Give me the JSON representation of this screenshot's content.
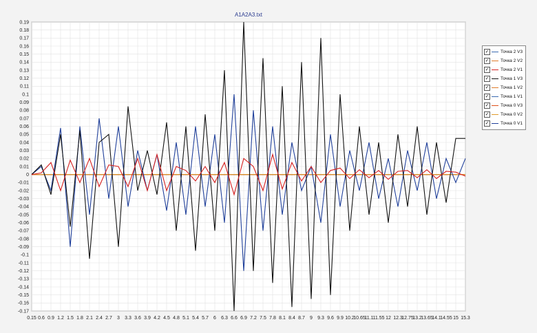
{
  "chart_data": {
    "type": "line",
    "title": "A1A2A3.txt",
    "xlabel": "",
    "ylabel": "",
    "xlim": [
      0.15,
      15.3
    ],
    "ylim": [
      -0.17,
      0.19
    ],
    "grid": true,
    "legend_position": "right",
    "x_ticks": [
      "0.15",
      "0.6",
      "0.9",
      "1.2",
      "1.5",
      "1.8",
      "2.1",
      "2.4",
      "2.7",
      "3",
      "3.3",
      "3.6",
      "3.9",
      "4.2",
      "4.5",
      "4.8",
      "5.1",
      "5.4",
      "5.7",
      "6",
      "6.3",
      "6.6",
      "6.9",
      "7.2",
      "7.5",
      "7.8",
      "8.1",
      "8.4",
      "8.7",
      "9",
      "9.3",
      "9.6",
      "9.9",
      "10.2",
      "10.65",
      "11.1",
      "11.55",
      "12",
      "12.3",
      "12.75",
      "13.2",
      "13.65",
      "14.1",
      "14.55",
      "15",
      "15.3"
    ],
    "y_ticks": [
      "0.19",
      "0.18",
      "0.17",
      "0.16",
      "0.15",
      "0.14",
      "0.13",
      "0.12",
      "0.11",
      "0.1",
      "0.09",
      "0.08",
      "0.07",
      "0.06",
      "0.05",
      "0.04",
      "0.03",
      "0.02",
      "0.01",
      "0",
      "-0.01",
      "-0.02",
      "-0.03",
      "-0.04",
      "-0.05",
      "-0.06",
      "-0.07",
      "-0.08",
      "-0.09",
      "-0.1",
      "-0.11",
      "-0.12",
      "-0.13",
      "-0.14",
      "-0.15",
      "-0.16",
      "-0.17"
    ],
    "series": [
      {
        "name": "Точка 2 V3",
        "color": "#3a6ab0",
        "values": [
          0,
          0,
          0,
          0,
          0,
          0,
          0,
          0,
          0,
          0,
          0,
          0,
          0,
          0,
          0,
          0,
          0,
          0,
          0,
          0,
          0,
          0,
          0,
          0,
          0,
          0,
          0,
          0,
          0,
          0,
          0,
          0,
          0,
          0,
          0,
          0,
          0,
          0,
          0,
          0,
          0,
          0,
          0,
          0,
          0,
          0
        ]
      },
      {
        "name": "Точка 2 V2",
        "color": "#e07b2a",
        "values": [
          0,
          0,
          0,
          0,
          0,
          0,
          0,
          0,
          0,
          0,
          0,
          0,
          0,
          0,
          0,
          0,
          0,
          0,
          0,
          0,
          0,
          0,
          0,
          0,
          0,
          0,
          0,
          0,
          0,
          0,
          0,
          0,
          0,
          0,
          0,
          0,
          0,
          0,
          0,
          0,
          0,
          0,
          0,
          0,
          0,
          0
        ]
      },
      {
        "name": "Точка 2 V1",
        "color": "#d62020",
        "values": [
          0,
          0.002,
          0.015,
          -0.02,
          0.018,
          -0.01,
          0.02,
          -0.015,
          0.012,
          0.01,
          -0.015,
          0.02,
          -0.02,
          0.025,
          -0.02,
          0.01,
          0.005,
          -0.008,
          0.01,
          -0.01,
          0.015,
          -0.025,
          0.02,
          0.01,
          -0.02,
          0.025,
          -0.018,
          0.015,
          -0.008,
          0.01,
          -0.01,
          0.005,
          0.008,
          -0.005,
          0.006,
          -0.004,
          0.005,
          -0.006,
          0.004,
          0.005,
          -0.004,
          0.006,
          -0.005,
          0.004,
          0.003,
          -0.002
        ]
      },
      {
        "name": "Точка 1 V3",
        "color": "#111111",
        "values": [
          0,
          0.012,
          -0.025,
          0.05,
          -0.065,
          0.055,
          -0.105,
          0.04,
          0.05,
          -0.09,
          0.085,
          -0.02,
          0.03,
          -0.025,
          0.065,
          -0.07,
          0.06,
          -0.095,
          0.075,
          -0.07,
          0.13,
          -0.17,
          0.19,
          -0.12,
          0.145,
          -0.135,
          0.11,
          -0.165,
          0.14,
          -0.155,
          0.17,
          -0.15,
          0.1,
          -0.07,
          0.06,
          -0.05,
          0.04,
          -0.06,
          0.05,
          -0.04,
          0.06,
          -0.05,
          0.04,
          -0.035,
          0.045,
          0.045
        ]
      },
      {
        "name": "Точка 1 V2",
        "color": "#e07b2a",
        "values": [
          0,
          0,
          0,
          0,
          0,
          0,
          0,
          0,
          0,
          0,
          0,
          0,
          0,
          0,
          0,
          0,
          0,
          0,
          0,
          0,
          0,
          0,
          0,
          0,
          0,
          0,
          0,
          0,
          0,
          0,
          0,
          0,
          0,
          0,
          0,
          0,
          0,
          0,
          0,
          0,
          0,
          0,
          0,
          0,
          0,
          0
        ]
      },
      {
        "name": "Точка 1 V1",
        "color": "#3a6ab0",
        "values": [
          0,
          0,
          0,
          0,
          0,
          0,
          0,
          0,
          0,
          0,
          0,
          0,
          0,
          0,
          0,
          0,
          0,
          0,
          0,
          0,
          0,
          0,
          0,
          0,
          0,
          0,
          0,
          0,
          0,
          0,
          0,
          0,
          0,
          0,
          0,
          0,
          0,
          0,
          0,
          0,
          0,
          0,
          0,
          0,
          0,
          0
        ]
      },
      {
        "name": "Точка 0 V3",
        "color": "#e0501a",
        "values": [
          0,
          0,
          0,
          0,
          0,
          0,
          0,
          0,
          0,
          0,
          0,
          0,
          0,
          0,
          0,
          0,
          0,
          0,
          0,
          0,
          0,
          0,
          0,
          0,
          0,
          0,
          0,
          0,
          0,
          0,
          0,
          0,
          0,
          0,
          0,
          0,
          0,
          0,
          0,
          0,
          0,
          0,
          0,
          0,
          0,
          0
        ]
      },
      {
        "name": "Точка 0 V2",
        "color": "#e09a2a",
        "values": [
          0,
          0,
          0,
          0,
          0,
          0,
          0,
          0,
          0,
          0,
          0,
          0,
          0,
          0,
          0,
          0,
          0,
          0,
          0,
          0,
          0,
          0,
          0,
          0,
          0,
          0,
          0,
          0,
          0,
          0,
          0,
          0,
          0,
          0,
          0,
          0,
          0,
          0,
          0,
          0,
          0,
          0,
          0,
          0,
          0,
          0
        ]
      },
      {
        "name": "Точка 0 V1",
        "color": "#1f3f9a",
        "values": [
          0,
          0.01,
          -0.02,
          0.058,
          -0.09,
          0.06,
          -0.05,
          0.07,
          -0.03,
          0.06,
          -0.04,
          0.03,
          -0.02,
          0.025,
          -0.045,
          0.04,
          -0.05,
          0.06,
          -0.04,
          0.05,
          -0.06,
          0.1,
          -0.12,
          0.08,
          -0.07,
          0.06,
          -0.05,
          0.04,
          -0.02,
          0.01,
          -0.06,
          0.05,
          -0.04,
          0.03,
          -0.02,
          0.04,
          -0.03,
          0.02,
          -0.04,
          0.03,
          -0.02,
          0.04,
          -0.03,
          0.02,
          -0.01,
          0.02
        ]
      }
    ]
  }
}
